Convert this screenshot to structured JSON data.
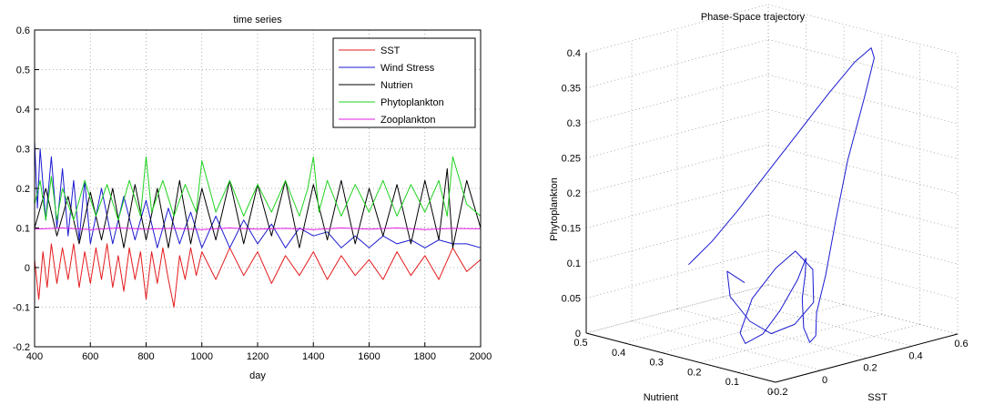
{
  "chart_data": [
    {
      "type": "line",
      "title": "time series",
      "xlabel": "day",
      "ylabel": "",
      "xlim": [
        400,
        2000
      ],
      "ylim": [
        -0.2,
        0.6
      ],
      "grid": true,
      "legend_position": "top-right",
      "x_ticks": [
        "400",
        "600",
        "800",
        "1000",
        "1200",
        "1400",
        "1600",
        "1800",
        "2000"
      ],
      "y_ticks": [
        "-0.2",
        "-0.1",
        "0",
        "0.1",
        "0.2",
        "0.3",
        "0.4",
        "0.5",
        "0.6"
      ],
      "series": [
        {
          "name": "SST",
          "color": "#e41a1c",
          "x": [
            400,
            415,
            430,
            445,
            460,
            480,
            500,
            520,
            540,
            560,
            580,
            600,
            620,
            640,
            660,
            680,
            700,
            720,
            740,
            760,
            780,
            800,
            820,
            840,
            860,
            880,
            900,
            920,
            940,
            960,
            980,
            1000,
            1050,
            1100,
            1150,
            1200,
            1250,
            1300,
            1350,
            1400,
            1450,
            1500,
            1550,
            1600,
            1650,
            1700,
            1750,
            1800,
            1850,
            1900,
            1950,
            2000
          ],
          "values": [
            0.02,
            -0.08,
            0.04,
            -0.05,
            0.06,
            -0.04,
            0.05,
            -0.03,
            0.06,
            -0.05,
            0.04,
            -0.04,
            0.05,
            -0.03,
            0.06,
            -0.05,
            0.03,
            -0.06,
            0.05,
            -0.03,
            0.04,
            -0.08,
            0.04,
            -0.04,
            0.05,
            -0.03,
            -0.1,
            0.03,
            -0.03,
            0.05,
            -0.02,
            0.04,
            -0.03,
            0.05,
            -0.02,
            0.04,
            -0.04,
            0.03,
            -0.02,
            0.04,
            -0.03,
            0.03,
            -0.02,
            0.02,
            -0.03,
            0.04,
            -0.02,
            0.03,
            -0.03,
            0.05,
            -0.01,
            0.02
          ]
        },
        {
          "name": "Wind Stress",
          "color": "#1a1ad0",
          "x": [
            400,
            410,
            420,
            440,
            460,
            480,
            500,
            520,
            540,
            560,
            580,
            600,
            640,
            680,
            720,
            760,
            800,
            840,
            880,
            920,
            960,
            1000,
            1050,
            1100,
            1150,
            1200,
            1250,
            1300,
            1350,
            1400,
            1450,
            1500,
            1550,
            1600,
            1650,
            1700,
            1750,
            1800,
            1850,
            1900,
            1950,
            2000
          ],
          "values": [
            0.32,
            0.15,
            0.3,
            0.12,
            0.28,
            0.1,
            0.25,
            0.08,
            0.22,
            0.07,
            0.22,
            0.06,
            0.2,
            0.06,
            0.18,
            0.07,
            0.17,
            0.05,
            0.15,
            0.06,
            0.14,
            0.05,
            0.13,
            0.05,
            0.12,
            0.06,
            0.11,
            0.05,
            0.1,
            0.08,
            0.09,
            0.05,
            0.08,
            0.05,
            0.08,
            0.06,
            0.07,
            0.05,
            0.07,
            0.06,
            0.06,
            0.05
          ]
        },
        {
          "name": "Nutrien",
          "color": "#000000",
          "x": [
            400,
            440,
            480,
            520,
            560,
            600,
            640,
            680,
            720,
            760,
            800,
            840,
            880,
            920,
            960,
            1000,
            1050,
            1100,
            1150,
            1200,
            1250,
            1300,
            1350,
            1400,
            1450,
            1500,
            1550,
            1600,
            1650,
            1700,
            1750,
            1800,
            1850,
            1880,
            1900,
            1950,
            2000
          ],
          "values": [
            0.1,
            0.2,
            0.08,
            0.18,
            0.06,
            0.19,
            0.07,
            0.2,
            0.05,
            0.21,
            0.07,
            0.2,
            0.05,
            0.22,
            0.06,
            0.2,
            0.07,
            0.22,
            0.06,
            0.21,
            0.08,
            0.22,
            0.05,
            0.21,
            0.07,
            0.22,
            0.06,
            0.2,
            0.08,
            0.21,
            0.06,
            0.22,
            0.07,
            0.25,
            0.05,
            0.22,
            0.1
          ]
        },
        {
          "name": "Phytoplankton",
          "color": "#1fd21f",
          "x": [
            400,
            420,
            440,
            460,
            480,
            500,
            540,
            580,
            620,
            660,
            700,
            740,
            780,
            800,
            820,
            860,
            900,
            940,
            980,
            1000,
            1050,
            1100,
            1150,
            1200,
            1250,
            1300,
            1350,
            1380,
            1400,
            1420,
            1450,
            1500,
            1550,
            1600,
            1650,
            1700,
            1750,
            1800,
            1850,
            1880,
            1900,
            1950,
            2000
          ],
          "values": [
            0.16,
            0.22,
            0.12,
            0.23,
            0.12,
            0.2,
            0.12,
            0.22,
            0.13,
            0.21,
            0.12,
            0.22,
            0.13,
            0.28,
            0.14,
            0.22,
            0.13,
            0.21,
            0.14,
            0.27,
            0.14,
            0.22,
            0.13,
            0.21,
            0.14,
            0.22,
            0.13,
            0.2,
            0.28,
            0.14,
            0.22,
            0.13,
            0.21,
            0.14,
            0.22,
            0.13,
            0.21,
            0.14,
            0.22,
            0.13,
            0.28,
            0.16,
            0.13
          ]
        },
        {
          "name": "Zooplankton",
          "color": "#e31ce3",
          "x": [
            400,
            500,
            600,
            700,
            800,
            900,
            1000,
            1100,
            1200,
            1300,
            1400,
            1500,
            1600,
            1700,
            1800,
            1900,
            2000
          ],
          "values": [
            0.097,
            0.1,
            0.096,
            0.1,
            0.097,
            0.099,
            0.096,
            0.1,
            0.097,
            0.099,
            0.096,
            0.1,
            0.097,
            0.1,
            0.096,
            0.099,
            0.098
          ]
        }
      ]
    },
    {
      "type": "line3d",
      "title": "Phase-Space trajectory",
      "xlabel": "SST",
      "ylabel": "Nutrient",
      "zlabel": "Phytoplankton",
      "grid": true,
      "sst_ticks": [
        "-0.2",
        "0",
        "0.2",
        "0.4",
        "0.6"
      ],
      "nutrient_ticks": [
        "0.5",
        "0.4",
        "0.3",
        "0.2",
        "0.1",
        "0"
      ],
      "phyto_ticks": [
        "0",
        "0.05",
        "0.1",
        "0.15",
        "0.2",
        "0.25",
        "0.3",
        "0.35",
        "0.4"
      ],
      "series": [
        {
          "name": "",
          "color": "#1a1ad0",
          "sst": [
            -0.05,
            0.02,
            0.1,
            0.2,
            0.3,
            0.4,
            0.48,
            0.52,
            0.5,
            0.44,
            0.35,
            0.28,
            0.22,
            0.18,
            0.16,
            0.15,
            0.14,
            0.15,
            0.18,
            0.2,
            0.18,
            0.12,
            0.06,
            0.0,
            -0.04,
            -0.02,
            0.05,
            0.12,
            0.18,
            0.2,
            0.15,
            0.08,
            0.02,
            -0.05,
            -0.08,
            -0.02
          ],
          "nutrient": [
            0.32,
            0.3,
            0.28,
            0.26,
            0.24,
            0.22,
            0.2,
            0.18,
            0.16,
            0.15,
            0.14,
            0.13,
            0.12,
            0.12,
            0.11,
            0.12,
            0.13,
            0.14,
            0.15,
            0.16,
            0.17,
            0.18,
            0.19,
            0.2,
            0.19,
            0.17,
            0.15,
            0.14,
            0.13,
            0.14,
            0.16,
            0.18,
            0.2,
            0.21,
            0.2,
            0.19
          ],
          "phyto": [
            0.11,
            0.14,
            0.18,
            0.23,
            0.28,
            0.33,
            0.37,
            0.39,
            0.38,
            0.33,
            0.25,
            0.17,
            0.1,
            0.05,
            0.02,
            0.01,
            0.03,
            0.07,
            0.1,
            0.12,
            0.09,
            0.05,
            0.02,
            0.01,
            0.03,
            0.08,
            0.12,
            0.14,
            0.11,
            0.06,
            0.03,
            0.02,
            0.04,
            0.08,
            0.12,
            0.1
          ]
        }
      ]
    }
  ]
}
